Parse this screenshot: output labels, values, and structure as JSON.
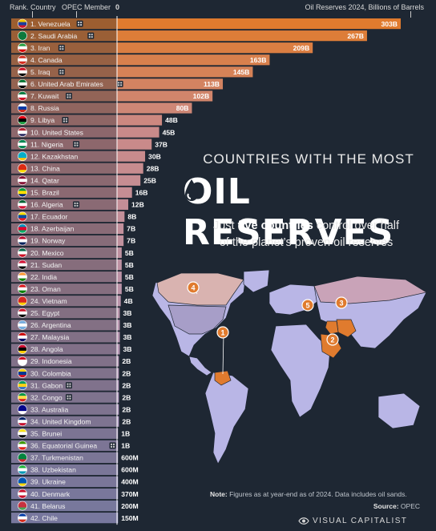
{
  "header": {
    "rank_country": "Rank. Country",
    "opec_member": "OPEC Member",
    "zero": "0",
    "reserves": "Oil Reserves 2024, Billions of Barrels"
  },
  "title": {
    "line1": "COUNTRIES WITH THE MOST",
    "line2": "OIL RESERVES"
  },
  "subtitle": {
    "pre": "Just ",
    "bold": "five countries",
    "post1": " control over half",
    "line2": "of the planet’s proven oil reserves"
  },
  "map_markers": [
    "1",
    "2",
    "3",
    "4",
    "5"
  ],
  "note": {
    "label": "Note:",
    "text": " Figures as at year-end as of 2024. Data includes oil sands."
  },
  "source": {
    "label": "Source:",
    "text": " OPEC"
  },
  "brand": "VISUAL CAPITALIST",
  "colors": {
    "top": "#e07b2e",
    "mid": "#c98a8a",
    "low": "#a8a4d8",
    "bg": "#1e2733"
  },
  "chart_data": {
    "type": "bar",
    "orientation": "horizontal",
    "unit": "Billions of Barrels",
    "categories": [
      "1. Venezuela",
      "2. Saudi Arabia",
      "3. Iran",
      "4. Canada",
      "5. Iraq",
      "6. United Arab Emirates",
      "7. Kuwait",
      "8. Russia",
      "9. Libya",
      "10. United States",
      "11. Nigeria",
      "12. Kazakhstan",
      "13. China",
      "14. Qatar",
      "15. Brazil",
      "16. Algeria",
      "17. Ecuador",
      "18. Azerbaijan",
      "19. Norway",
      "20. Mexico",
      "21. Sudan",
      "22. India",
      "23. Oman",
      "24. Vietnam",
      "25. Egypt",
      "26. Argentina",
      "27. Malaysia",
      "28. Angola",
      "29. Indonesia",
      "30. Colombia",
      "31. Gabon",
      "32. Congo",
      "33. Australia",
      "34. United Kingdom",
      "35. Brunei",
      "36. Equatorial Guinea",
      "37. Turkmenistan",
      "38. Uzbekistan",
      "39. Ukraine",
      "40. Denmark",
      "41. Belarus",
      "42. Chile"
    ],
    "values": [
      303,
      267,
      209,
      163,
      145,
      113,
      102,
      80,
      48,
      45,
      37,
      30,
      28,
      25,
      16,
      12,
      8,
      7,
      7,
      5,
      5,
      5,
      5,
      4,
      3,
      3,
      3,
      3,
      2,
      2,
      2,
      2,
      2,
      2,
      1,
      1,
      0.6,
      0.6,
      0.4,
      0.37,
      0.2,
      0.15
    ],
    "labels": [
      "303B",
      "267B",
      "209B",
      "163B",
      "145B",
      "113B",
      "102B",
      "80B",
      "48B",
      "45B",
      "37B",
      "30B",
      "28B",
      "25B",
      "16B",
      "12B",
      "8B",
      "7B",
      "7B",
      "5B",
      "5B",
      "5B",
      "5B",
      "4B",
      "3B",
      "3B",
      "3B",
      "3B",
      "2B",
      "2B",
      "2B",
      "2B",
      "2B",
      "2B",
      "1B",
      "1B",
      "600M",
      "600M",
      "400M",
      "370M",
      "200M",
      "150M"
    ],
    "opec": [
      true,
      true,
      true,
      false,
      true,
      true,
      true,
      false,
      true,
      false,
      true,
      false,
      false,
      false,
      false,
      true,
      false,
      false,
      false,
      false,
      false,
      false,
      false,
      false,
      false,
      false,
      false,
      false,
      false,
      false,
      true,
      true,
      false,
      false,
      false,
      true,
      false,
      false,
      false,
      false,
      false,
      false
    ],
    "xlim": [
      0,
      303
    ]
  }
}
